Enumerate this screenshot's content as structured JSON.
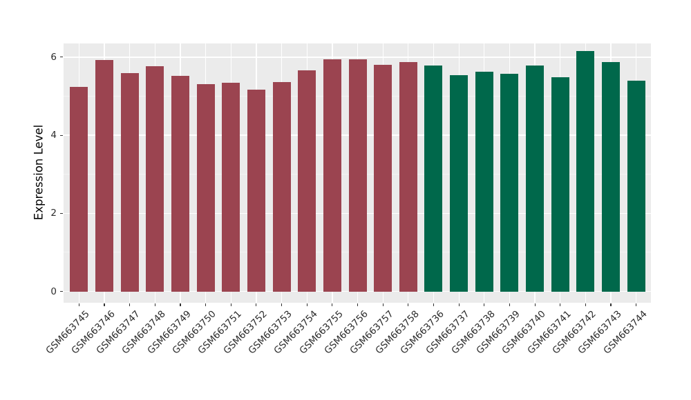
{
  "chart_data": {
    "type": "bar",
    "title": "",
    "xlabel": "",
    "ylabel": "Expression Level",
    "yticks": [
      0,
      2,
      4,
      6
    ],
    "ytick_labels": [
      "0",
      "2",
      "4",
      "6"
    ],
    "ylim": [
      -0.29,
      6.35
    ],
    "grid": true,
    "legend_position": "none",
    "group_colors": {
      "red": "#9B4450",
      "green": "#00684B"
    },
    "panel_bg": "#EBEBEB",
    "figure_bg": "#FFFFFF",
    "gridline_color": "#FFFFFF",
    "bars": [
      {
        "label": "GSM663745",
        "value": 5.24,
        "group": "red"
      },
      {
        "label": "GSM663746",
        "value": 5.93,
        "group": "red"
      },
      {
        "label": "GSM663747",
        "value": 5.6,
        "group": "red"
      },
      {
        "label": "GSM663748",
        "value": 5.77,
        "group": "red"
      },
      {
        "label": "GSM663749",
        "value": 5.52,
        "group": "red"
      },
      {
        "label": "GSM663750",
        "value": 5.31,
        "group": "red"
      },
      {
        "label": "GSM663751",
        "value": 5.34,
        "group": "red"
      },
      {
        "label": "GSM663752",
        "value": 5.17,
        "group": "red"
      },
      {
        "label": "GSM663753",
        "value": 5.36,
        "group": "red"
      },
      {
        "label": "GSM663754",
        "value": 5.66,
        "group": "red"
      },
      {
        "label": "GSM663755",
        "value": 5.95,
        "group": "red"
      },
      {
        "label": "GSM663756",
        "value": 5.95,
        "group": "red"
      },
      {
        "label": "GSM663757",
        "value": 5.8,
        "group": "red"
      },
      {
        "label": "GSM663758",
        "value": 5.87,
        "group": "red"
      },
      {
        "label": "GSM663736",
        "value": 5.78,
        "group": "green"
      },
      {
        "label": "GSM663737",
        "value": 5.54,
        "group": "green"
      },
      {
        "label": "GSM663738",
        "value": 5.63,
        "group": "green"
      },
      {
        "label": "GSM663739",
        "value": 5.57,
        "group": "green"
      },
      {
        "label": "GSM663740",
        "value": 5.79,
        "group": "green"
      },
      {
        "label": "GSM663741",
        "value": 5.49,
        "group": "green"
      },
      {
        "label": "GSM663742",
        "value": 6.16,
        "group": "green"
      },
      {
        "label": "GSM663743",
        "value": 5.88,
        "group": "green"
      },
      {
        "label": "GSM663744",
        "value": 5.4,
        "group": "green"
      }
    ]
  }
}
